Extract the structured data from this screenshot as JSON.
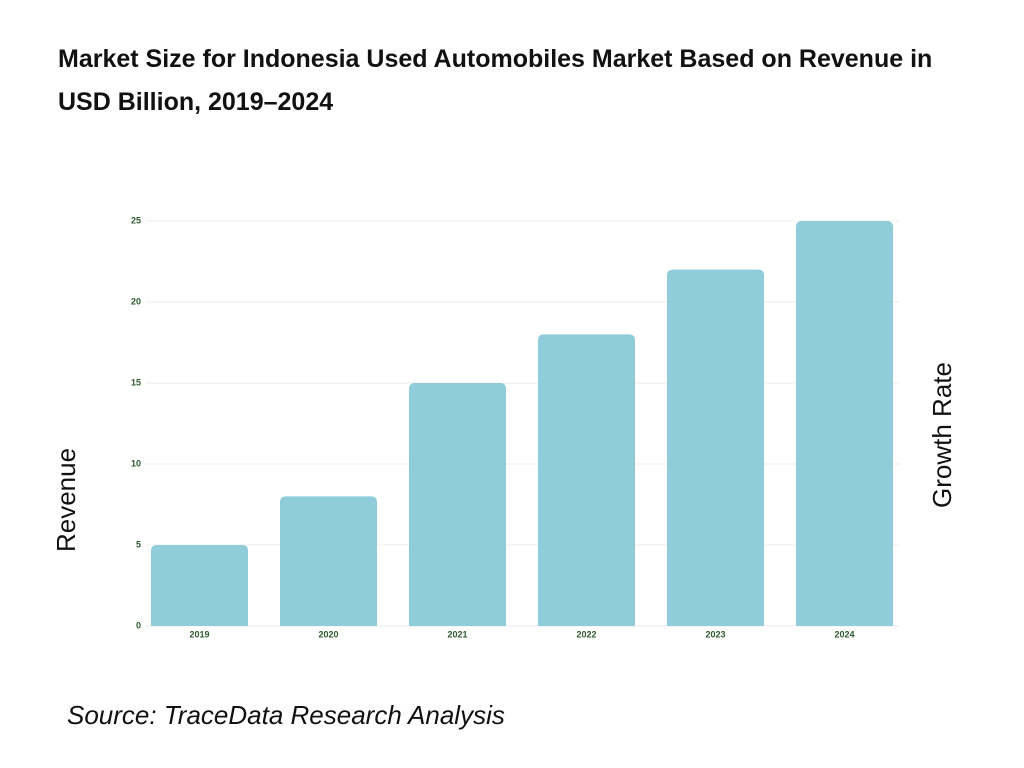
{
  "chart_data": {
    "type": "bar",
    "title": "Market Size for Indonesia Used Automobiles Market Based on Revenue in USD Billion, 2019–2024",
    "categories": [
      "2019",
      "2020",
      "2021",
      "2022",
      "2023",
      "2024"
    ],
    "values": [
      5,
      8,
      15,
      18,
      22,
      25
    ],
    "color": "#8ecdd9",
    "ylim": [
      0,
      25
    ],
    "yticks": [
      0,
      5,
      10,
      15,
      20,
      25
    ],
    "grid": true,
    "y_label": "Revenue",
    "y2_label": "Growth Rate",
    "source": "Source: TraceData Research Analysis"
  }
}
